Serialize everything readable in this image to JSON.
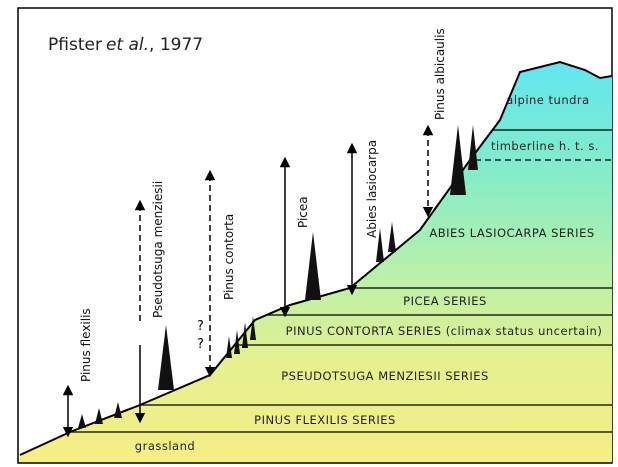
{
  "citation": {
    "author": "Pfister",
    "etal": "et al.",
    "year": ", 1977"
  },
  "species": [
    "Pinus flexilis",
    "Pseudotsuga menziesii",
    "Pinus contorta",
    "Picea",
    "Abies lasiocarpa",
    "Pinus albicaulis"
  ],
  "zones": [
    "alpine tundra",
    "timberline h. t. s.",
    "ABIES LASIOCARPA SERIES",
    "PICEA SERIES",
    "PINUS CONTORTA SERIES (climax status uncertain)",
    "PSEUDOTSUGA MENZIESII SERIES",
    "PINUS FLEXILIS SERIES",
    "grassland"
  ],
  "uncertain_marks": [
    "?",
    "?"
  ]
}
